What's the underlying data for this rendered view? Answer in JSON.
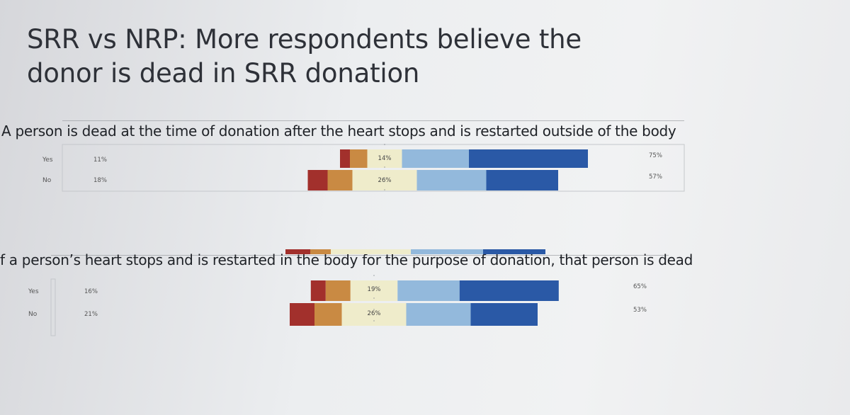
{
  "slide": {
    "title_line1": "SRR vs NRP:  More respondents believe the",
    "title_line2": "donor is dead in SRR donation"
  },
  "colors": {
    "strongly_disagree": "#a2302c",
    "disagree": "#c98a43",
    "neutral": "#efeccb",
    "agree": "#93b9dc",
    "strongly_agree": "#2a59a6"
  },
  "chart_data": [
    {
      "type": "bar",
      "stacked": "diverging",
      "question": "A person is dead at the time of donation after the heart stops and is restarted outside of the body",
      "categories": [
        "Yes",
        "No"
      ],
      "disagree_labels": [
        "11%",
        "18%"
      ],
      "neutral_labels": [
        "14%",
        "26%"
      ],
      "agree_labels": [
        "75%",
        "57%"
      ],
      "disagree_values": [
        11,
        18
      ],
      "neutral_values": [
        14,
        26
      ],
      "agree_values": [
        75,
        57
      ],
      "segments": [
        [
          4,
          7,
          14,
          27,
          48
        ],
        [
          8,
          10,
          26,
          28,
          29
        ]
      ]
    },
    {
      "type": "bar",
      "stacked": "diverging",
      "question": "f a person’s heart stops and is restarted in the body for the purpose of donation, that person is dead",
      "categories": [
        "Yes",
        "No"
      ],
      "disagree_labels": [
        "16%",
        "21%"
      ],
      "neutral_labels": [
        "19%",
        "26%"
      ],
      "agree_labels": [
        "65%",
        "53%"
      ],
      "disagree_values": [
        16,
        21
      ],
      "neutral_values": [
        19,
        26
      ],
      "agree_values": [
        65,
        53
      ],
      "segments": [
        [
          6,
          10,
          19,
          25,
          40
        ],
        [
          10,
          11,
          26,
          26,
          27
        ]
      ]
    }
  ]
}
